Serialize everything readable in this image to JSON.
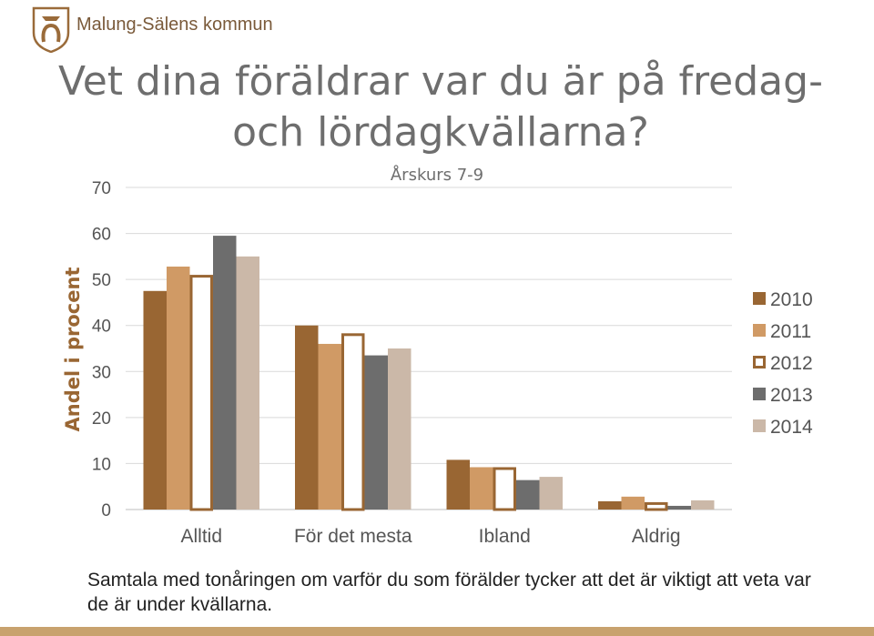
{
  "header": {
    "org_name": "Malung-Sälens kommun",
    "title": "Vet dina föräldrar var du är på fredag- och lördagkvällarna?"
  },
  "colors": {
    "brand": "#9a6b3a",
    "bottom_bar": "#c8a26e"
  },
  "chart_data": {
    "type": "bar",
    "title": "Årskurs 7-9",
    "xlabel": "",
    "ylabel": "Andel i procent",
    "ylim": [
      0,
      70
    ],
    "yticks": [
      0,
      10,
      20,
      30,
      40,
      50,
      60,
      70
    ],
    "categories": [
      "Alltid",
      "För det mesta",
      "Ibland",
      "Aldrig"
    ],
    "legend_position": "right",
    "grid": true,
    "series": [
      {
        "name": "2010",
        "color": "#996633",
        "fill": true,
        "values": [
          47.5,
          40,
          10.8,
          1.8
        ]
      },
      {
        "name": "2011",
        "color": "#d09a65",
        "fill": true,
        "values": [
          52.8,
          36,
          9.2,
          2.8
        ]
      },
      {
        "name": "2012",
        "color": "#996633",
        "fill": false,
        "values": [
          51,
          38.3,
          9.2,
          1.6
        ]
      },
      {
        "name": "2013",
        "color": "#6d6d6d",
        "fill": true,
        "values": [
          59.5,
          33.5,
          6.4,
          0.8
        ]
      },
      {
        "name": "2014",
        "color": "#cbb8a8",
        "fill": true,
        "values": [
          55,
          35,
          7.1,
          2
        ]
      }
    ]
  },
  "caption": "Samtala med tonåringen om varför du som förälder tycker att det är viktigt att veta var de är under kvällarna."
}
